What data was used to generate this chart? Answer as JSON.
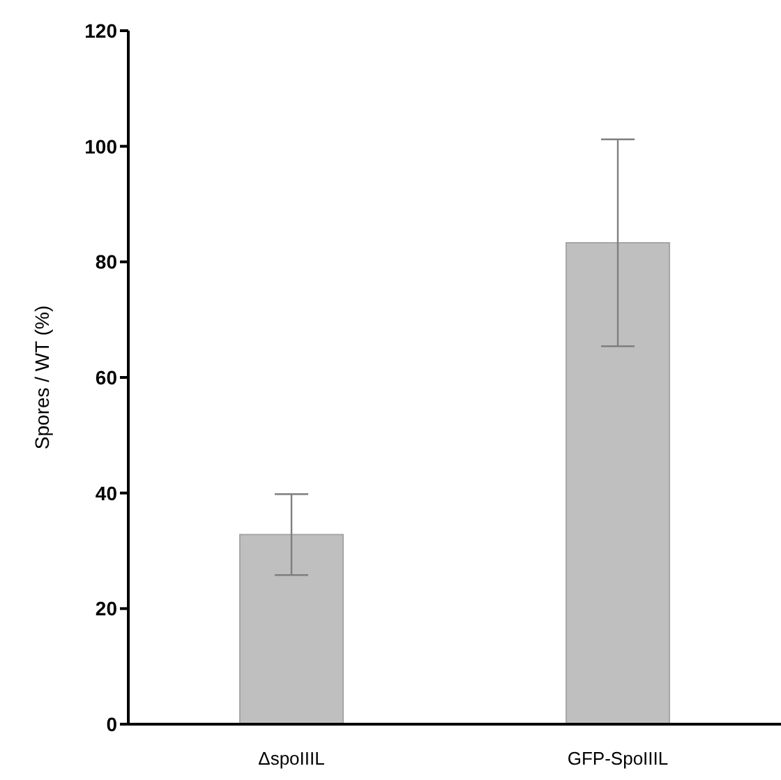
{
  "chart_data": {
    "type": "bar",
    "ylabel": "Spores / WT (%)",
    "categories": [
      "ΔspoIIIL",
      "GFP-SpoIIIL"
    ],
    "values": [
      32.8,
      83.3
    ],
    "errors": [
      7,
      17.9
    ],
    "color": "#bfbfbf",
    "ylim": [
      0,
      120
    ],
    "yticks": [
      0,
      20,
      40,
      60,
      80,
      100,
      120
    ],
    "grid": false,
    "legend": false
  }
}
